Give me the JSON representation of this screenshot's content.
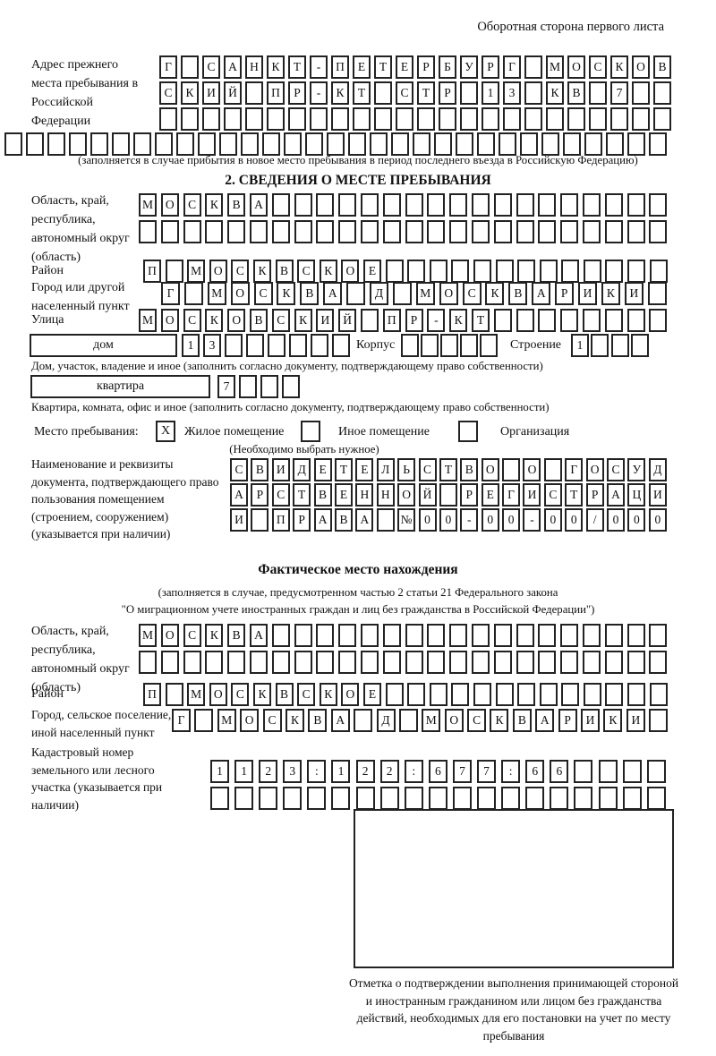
{
  "page": {
    "header_note": "Оборотная сторона первого листа"
  },
  "prev_address": {
    "label": "Адрес прежнего места пребывания в Российской Федерации",
    "rows": [
      {
        "text": "Г САНКТ-ПЕТЕРБУРГ МОСКОВ",
        "len": 24
      },
      {
        "text": "СКИЙ ПР-КТ СТР 13 КВ 7",
        "len": 24
      },
      {
        "text": "",
        "len": 24
      },
      {
        "text": "",
        "len": 31
      }
    ],
    "caption": "(заполняется в случае прибытия в новое место пребывания в период последнего въезда в Российскую Федерацию)"
  },
  "section2": {
    "title": "2. СВЕДЕНИЯ О МЕСТЕ ПРЕБЫВАНИЯ",
    "region": {
      "label": "Область, край, республика, автономный округ (область)",
      "rows": [
        {
          "text": "МОСКВА",
          "len": 24
        },
        {
          "text": "",
          "len": 24
        }
      ]
    },
    "district": {
      "label": "Район",
      "row": {
        "text": "П МОСКВСКОЕ",
        "len": 24
      }
    },
    "city": {
      "label": "Город или другой населенный пункт",
      "row": {
        "text": "Г МОСКВА Д МОСКВАРИКИ",
        "len": 22
      }
    },
    "street": {
      "label": "Улица",
      "row": {
        "text": "МОСКОВСКИЙ ПР-КТ",
        "len": 24
      }
    },
    "house": {
      "type_label": "дом",
      "number": {
        "text": "13",
        "len": 8
      },
      "korpus_label": "Корпус",
      "korpus": {
        "text": "",
        "len": 5
      },
      "stroenie_label": "Строение",
      "stroenie": {
        "text": "1",
        "len": 4
      },
      "caption": "Дом, участок, владение и иное (заполнить согласно документу, подтверждающему право собственности)"
    },
    "apartment": {
      "type_label": "квартира",
      "number": {
        "text": "7",
        "len": 4
      },
      "caption": "Квартира, комната, офис и иное (заполнить согласно документу, подтверждающему право собственности)"
    },
    "stay_type": {
      "label": "Место пребывания:",
      "options": [
        {
          "label": "Жилое помещение",
          "checked": "X"
        },
        {
          "label": "Иное помещение",
          "checked": ""
        },
        {
          "label": "Организация",
          "checked": ""
        }
      ],
      "hint": "(Необходимо выбрать нужное)"
    },
    "document": {
      "label": "Наименование и реквизиты документа, подтверждающего право пользования помещением (строением, сооружением) (указывается при наличии)",
      "rows": [
        {
          "text": "СВИДЕТЕЛЬСТВО О ГОСУД",
          "len": 21
        },
        {
          "text": "АРСТВЕННОЙ РЕГИСТРАЦИ",
          "len": 21
        },
        {
          "text": "И ПРАВА №00-00-00/000",
          "len": 21
        }
      ]
    }
  },
  "actual_location": {
    "title": "Фактическое место нахождения",
    "captions": [
      "(заполняется в случае, предусмотренном частью 2 статьи 21 Федерального закона",
      "\"О миграционном учете иностранных граждан и лиц без гражданства в Российской Федерации\")"
    ],
    "region": {
      "label": "Область, край, республика, автономный округ (область)",
      "rows": [
        {
          "text": "МОСКВА",
          "len": 24
        },
        {
          "text": "",
          "len": 24
        }
      ]
    },
    "district": {
      "label": "Район",
      "row": {
        "text": "П МОСКВСКОЕ",
        "len": 24
      }
    },
    "city": {
      "label": "Город, сельское поселение, иной населенный пункт",
      "row": {
        "text": "Г МОСКВА Д МОСКВАРИКИ",
        "len": 22
      }
    },
    "cadastre": {
      "label": "Кадастровый номер земельного или лесного участка (указывается при наличии)",
      "rows": [
        {
          "text": "1123:122:677:66",
          "len": 19
        },
        {
          "text": "",
          "len": 19
        }
      ]
    },
    "stamp_caption": "Отметка о подтверждении выполнения принимающей стороной и иностранным гражданином или лицом без гражданства действий, необходимых для его постановки на учет по месту пребывания"
  }
}
